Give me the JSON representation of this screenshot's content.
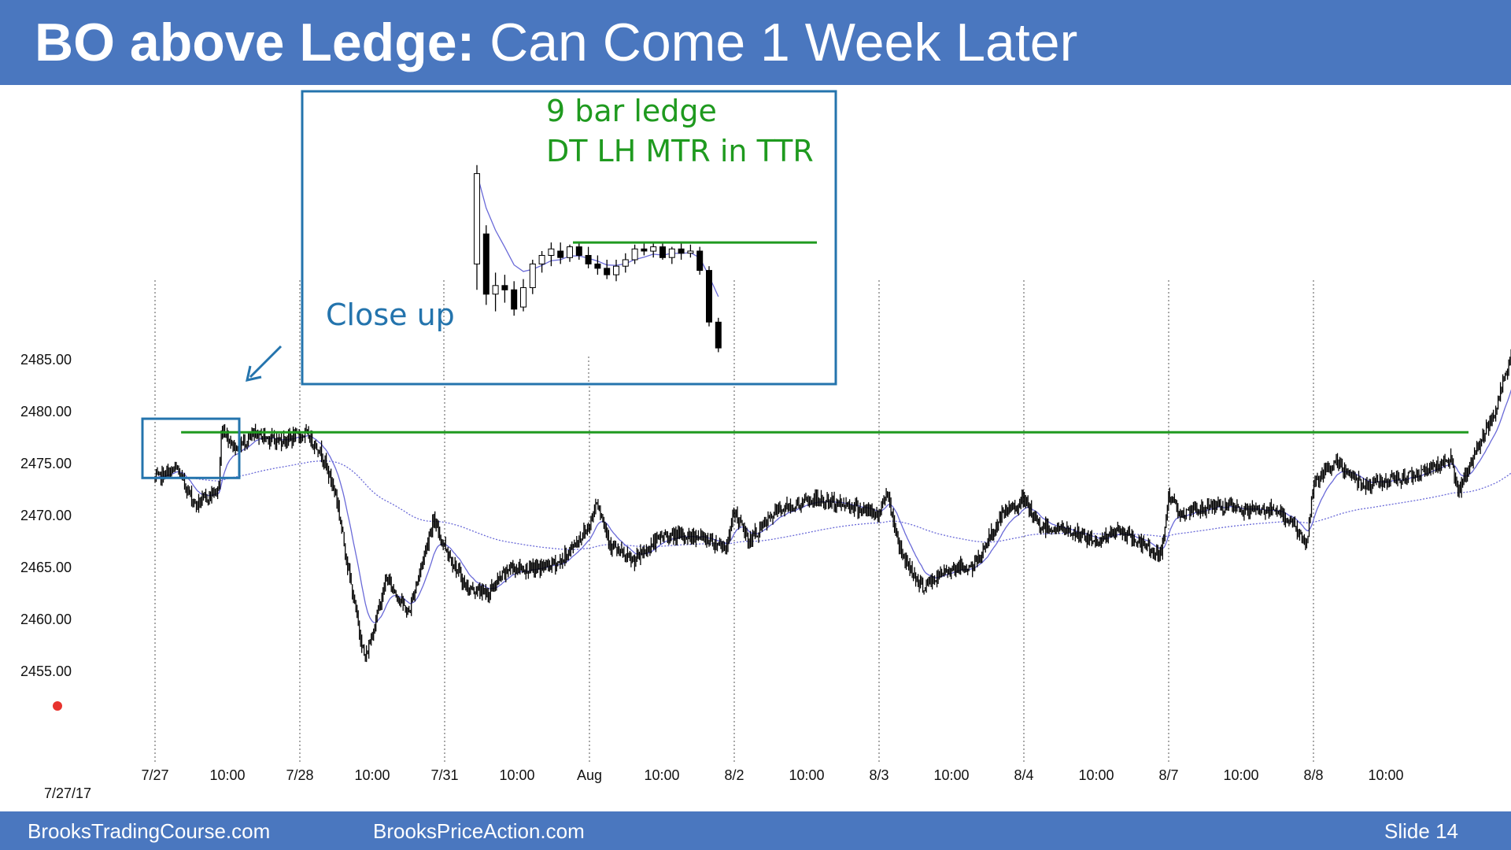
{
  "slide": {
    "title_bold": "BO above Ledge:",
    "title_rest": " Can Come 1 Week Later",
    "footer_left": "BrooksTradingCourse.com",
    "footer_center": "BrooksPriceAction.com",
    "footer_right": "Slide  14"
  },
  "annotations": {
    "inset_line1": "9 bar ledge",
    "inset_line2": "DT LH MTR in TTR",
    "close_up": "Close up"
  },
  "colors": {
    "header": "#4a77bf",
    "ledge_line": "#1f9a1f",
    "highlight_box": "#2474ad",
    "ema": "#6a6ad8"
  },
  "chart_data": {
    "type": "candlestick",
    "title": "",
    "xlabel": "",
    "ylabel": "",
    "date_label": "7/27/17",
    "ylim": [
      2451.5,
      2489
    ],
    "yticks": [
      "2485.00",
      "2480.00",
      "2475.00",
      "2470.00",
      "2465.00",
      "2460.00",
      "2455.00"
    ],
    "yticks_values": [
      2485,
      2480,
      2475,
      2470,
      2465,
      2460,
      2455
    ],
    "xticks": [
      "7/27",
      "10:00",
      "7/28",
      "10:00",
      "7/31",
      "10:00",
      "Aug",
      "10:00",
      "8/2",
      "10:00",
      "8/3",
      "10:00",
      "8/4",
      "10:00",
      "8/7",
      "10:00",
      "8/8",
      "10:00"
    ],
    "session_days": [
      "7/27",
      "7/28",
      "7/31",
      "Aug",
      "8/2",
      "8/3",
      "8/4",
      "8/7",
      "8/8"
    ],
    "ledge_level": 2478.0,
    "path": [
      [
        0.0,
        2473.5
      ],
      [
        0.15,
        2474.5
      ],
      [
        0.28,
        2471.0
      ],
      [
        0.44,
        2472.5
      ],
      [
        0.46,
        2478.5
      ],
      [
        0.55,
        2476.5
      ],
      [
        0.7,
        2477.8
      ],
      [
        0.85,
        2477.2
      ],
      [
        1.05,
        2477.8
      ],
      [
        1.15,
        2476.0
      ],
      [
        1.25,
        2472.0
      ],
      [
        1.35,
        2463.5
      ],
      [
        1.45,
        2456.0
      ],
      [
        1.6,
        2464.0
      ],
      [
        1.75,
        2460.5
      ],
      [
        1.92,
        2469.5
      ],
      [
        2.02,
        2466.5
      ],
      [
        2.15,
        2463.0
      ],
      [
        2.3,
        2462.5
      ],
      [
        2.45,
        2465.0
      ],
      [
        2.6,
        2464.8
      ],
      [
        2.8,
        2465.5
      ],
      [
        3.0,
        2469.0
      ],
      [
        3.05,
        2471.5
      ],
      [
        3.15,
        2467.0
      ],
      [
        3.3,
        2465.5
      ],
      [
        3.5,
        2468.0
      ],
      [
        3.75,
        2468.0
      ],
      [
        3.95,
        2467.0
      ],
      [
        4.0,
        2470.5
      ],
      [
        4.1,
        2467.5
      ],
      [
        4.3,
        2470.5
      ],
      [
        4.55,
        2471.5
      ],
      [
        4.8,
        2471.0
      ],
      [
        5.0,
        2470.0
      ],
      [
        5.05,
        2472.5
      ],
      [
        5.15,
        2466.5
      ],
      [
        5.3,
        2463.0
      ],
      [
        5.5,
        2465.0
      ],
      [
        5.65,
        2465.0
      ],
      [
        5.85,
        2470.0
      ],
      [
        6.0,
        2471.5
      ],
      [
        6.1,
        2469.0
      ],
      [
        6.3,
        2468.5
      ],
      [
        6.5,
        2467.5
      ],
      [
        6.65,
        2468.5
      ],
      [
        6.85,
        2467.0
      ],
      [
        6.95,
        2466.0
      ],
      [
        7.0,
        2472.0
      ],
      [
        7.1,
        2470.0
      ],
      [
        7.3,
        2471.0
      ],
      [
        7.5,
        2470.5
      ],
      [
        7.7,
        2470.5
      ],
      [
        7.85,
        2469.5
      ],
      [
        7.95,
        2467.0
      ],
      [
        8.0,
        2473.0
      ],
      [
        8.15,
        2475.0
      ],
      [
        8.35,
        2473.0
      ],
      [
        8.6,
        2473.5
      ],
      [
        8.8,
        2474.5
      ],
      [
        8.95,
        2475.5
      ],
      [
        9.0,
        2472.0
      ],
      [
        9.1,
        2475.5
      ],
      [
        9.25,
        2480.0
      ],
      [
        9.38,
        2486.0
      ],
      [
        9.5,
        2481.0
      ],
      [
        9.62,
        2478.5
      ],
      [
        9.75,
        2478.0
      ],
      [
        9.87,
        2474.5
      ],
      [
        9.95,
        2468.0
      ],
      [
        10.05,
        2470.5
      ]
    ],
    "closeup": {
      "ledge_level": 2478.0,
      "bars": [
        {
          "o": 2477.0,
          "h": 2481.6,
          "l": 2475.8,
          "c": 2481.2
        },
        {
          "o": 2478.4,
          "h": 2478.8,
          "l": 2475.1,
          "c": 2475.6
        },
        {
          "o": 2475.6,
          "h": 2476.6,
          "l": 2474.8,
          "c": 2476.0
        },
        {
          "o": 2476.0,
          "h": 2476.5,
          "l": 2475.2,
          "c": 2475.8
        },
        {
          "o": 2475.8,
          "h": 2476.2,
          "l": 2474.6,
          "c": 2474.9
        },
        {
          "o": 2475.0,
          "h": 2476.3,
          "l": 2474.8,
          "c": 2475.9
        },
        {
          "o": 2475.9,
          "h": 2477.2,
          "l": 2475.6,
          "c": 2477.0
        },
        {
          "o": 2477.0,
          "h": 2477.6,
          "l": 2476.6,
          "c": 2477.4
        },
        {
          "o": 2477.4,
          "h": 2478.0,
          "l": 2476.9,
          "c": 2477.7
        },
        {
          "o": 2477.6,
          "h": 2478.0,
          "l": 2477.0,
          "c": 2477.3
        },
        {
          "o": 2477.3,
          "h": 2477.9,
          "l": 2477.1,
          "c": 2477.8
        },
        {
          "o": 2477.8,
          "h": 2478.0,
          "l": 2477.2,
          "c": 2477.4
        },
        {
          "o": 2477.4,
          "h": 2477.8,
          "l": 2476.8,
          "c": 2477.0
        },
        {
          "o": 2477.0,
          "h": 2477.4,
          "l": 2476.5,
          "c": 2476.8
        },
        {
          "o": 2476.8,
          "h": 2477.2,
          "l": 2476.3,
          "c": 2476.5
        },
        {
          "o": 2476.5,
          "h": 2477.2,
          "l": 2476.2,
          "c": 2476.9
        },
        {
          "o": 2476.9,
          "h": 2477.5,
          "l": 2476.6,
          "c": 2477.2
        },
        {
          "o": 2477.2,
          "h": 2477.9,
          "l": 2477.0,
          "c": 2477.7
        },
        {
          "o": 2477.7,
          "h": 2478.0,
          "l": 2477.4,
          "c": 2477.6
        },
        {
          "o": 2477.6,
          "h": 2478.0,
          "l": 2477.3,
          "c": 2477.8
        },
        {
          "o": 2477.8,
          "h": 2478.0,
          "l": 2477.2,
          "c": 2477.3
        },
        {
          "o": 2477.3,
          "h": 2477.8,
          "l": 2477.0,
          "c": 2477.7
        },
        {
          "o": 2477.7,
          "h": 2478.0,
          "l": 2477.2,
          "c": 2477.5
        },
        {
          "o": 2477.5,
          "h": 2477.9,
          "l": 2477.3,
          "c": 2477.6
        },
        {
          "o": 2477.6,
          "h": 2477.8,
          "l": 2476.5,
          "c": 2476.7
        },
        {
          "o": 2476.7,
          "h": 2476.9,
          "l": 2474.1,
          "c": 2474.3
        },
        {
          "o": 2474.3,
          "h": 2474.5,
          "l": 2472.9,
          "c": 2473.1
        }
      ]
    }
  }
}
